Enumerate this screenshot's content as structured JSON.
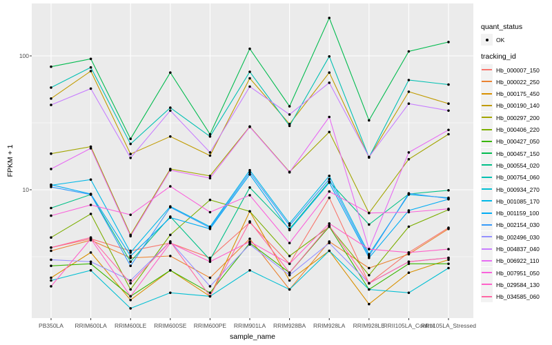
{
  "figure": {
    "background": "#FFFFFF",
    "panel_background": "#EBEBEB",
    "gridline_color": "#FFFFFF",
    "axis_text_color": "#4D4D4D",
    "point_color": "#000000"
  },
  "axes": {
    "y_title": "FPKM + 1",
    "x_title": "sample_name",
    "y_tick_labels": [
      "100",
      "10"
    ]
  },
  "legend": {
    "quant_status_title": "quant_status",
    "quant_status_items": [
      {
        "label": "OK",
        "marker": "black-point"
      }
    ],
    "tracking_id_title": "tracking_id"
  },
  "chart_data": {
    "type": "line",
    "title": "",
    "xlabel": "sample_name",
    "ylabel": "FPKM + 1",
    "y_scale": "log10",
    "y_major_ticks": [
      10,
      100
    ],
    "y_minor_gridlines": [
      3.162,
      31.62
    ],
    "ylim": [
      1.1,
      235
    ],
    "grid": true,
    "legend_position": "right",
    "point_legend": {
      "title": "quant_status",
      "label": "OK"
    },
    "series_legend_title": "tracking_id",
    "categories": [
      "PB350LA",
      "RRIM600LA",
      "RRIM600LE",
      "RRIM600SE",
      "RRIM600PE",
      "RRIM901LA",
      "RRIM928BA",
      "RRIM928LA",
      "RRIM928LE",
      "RRII105LA_Control",
      "RRII105LA_Stressed"
    ],
    "series": [
      {
        "name": "Hb_000007_150",
        "color": "#F8766D",
        "values": [
          3.7,
          4.3,
          3.5,
          4.0,
          3.1,
          5.7,
          2.8,
          8.7,
          2.0,
          3.4,
          5.2
        ]
      },
      {
        "name": "Hb_000022_250",
        "color": "#EA8331",
        "values": [
          3.5,
          4.2,
          3.1,
          3.2,
          2.2,
          4.3,
          1.8,
          4.1,
          2.6,
          3.3,
          5.1
        ]
      },
      {
        "name": "Hb_000175_450",
        "color": "#D89000",
        "values": [
          2.2,
          3.4,
          1.5,
          2.5,
          1.6,
          6.9,
          2.1,
          3.5,
          1.4,
          2.4,
          3.0
        ]
      },
      {
        "name": "Hb_000190_140",
        "color": "#C09B00",
        "values": [
          48,
          77,
          18.5,
          25,
          18,
          68,
          31,
          75,
          17.4,
          54,
          44
        ]
      },
      {
        "name": "Hb_000297_200",
        "color": "#A3A500",
        "values": [
          18.6,
          21,
          4.6,
          14.3,
          12.7,
          29.7,
          13.6,
          27,
          6.7,
          16.9,
          26
        ]
      },
      {
        "name": "Hb_000406_220",
        "color": "#7CAE00",
        "values": [
          4.4,
          6.6,
          1.8,
          4.6,
          8.4,
          6.9,
          3.2,
          5.3,
          2.3,
          5.3,
          7.1
        ]
      },
      {
        "name": "Hb_000427_050",
        "color": "#39B600",
        "values": [
          2.7,
          2.8,
          1.6,
          2.5,
          1.7,
          4.0,
          2.4,
          5.3,
          1.8,
          2.8,
          2.8
        ]
      },
      {
        "name": "Hb_000457_150",
        "color": "#00BB4E",
        "values": [
          83,
          95,
          24,
          75,
          26,
          113,
          42,
          192,
          33,
          108,
          127
        ]
      },
      {
        "name": "Hb_000554_020",
        "color": "#00C087",
        "values": [
          7.3,
          9.2,
          2.9,
          6.3,
          3.0,
          10.4,
          5.1,
          11.5,
          5.5,
          9.3,
          9.9
        ]
      },
      {
        "name": "Hb_000754_060",
        "color": "#00C0B2",
        "values": [
          58,
          82,
          22,
          41,
          25,
          76,
          30,
          99,
          17.5,
          66,
          61
        ]
      },
      {
        "name": "Hb_000934_270",
        "color": "#00BFD3",
        "values": [
          2.1,
          2.5,
          1.3,
          1.7,
          1.6,
          2.5,
          1.8,
          3.5,
          1.8,
          1.7,
          2.6
        ]
      },
      {
        "name": "Hb_001085_170",
        "color": "#00B8E7",
        "values": [
          10.8,
          11.9,
          3.4,
          7.5,
          5.3,
          14.0,
          5.6,
          12.7,
          3.3,
          9.2,
          8.7
        ]
      },
      {
        "name": "Hb_001159_100",
        "color": "#00ACF4",
        "values": [
          10.9,
          9.3,
          3.2,
          6.2,
          5.1,
          13.0,
          5.0,
          11.3,
          3.1,
          7.0,
          8.5
        ]
      },
      {
        "name": "Hb_002154_030",
        "color": "#359AFA",
        "values": [
          10.5,
          9.2,
          2.7,
          7.4,
          5.2,
          13.5,
          5.4,
          12.0,
          3.2,
          9.4,
          8.6
        ]
      },
      {
        "name": "Hb_002496_030",
        "color": "#9590FF",
        "values": [
          3.0,
          2.9,
          2.1,
          4.1,
          1.9,
          3.9,
          2.3,
          4.0,
          2.0,
          2.9,
          3.1
        ]
      },
      {
        "name": "Hb_004837_040",
        "color": "#C77CFF",
        "values": [
          43,
          57,
          17.3,
          39,
          19,
          59,
          36.5,
          63,
          17.6,
          44,
          39
        ]
      },
      {
        "name": "Hb_006922_110",
        "color": "#E76BF3",
        "values": [
          14.3,
          20.4,
          4.5,
          14.0,
          12.2,
          29.5,
          13.5,
          35,
          3.6,
          19,
          28
        ]
      },
      {
        "name": "Hb_007951_050",
        "color": "#FA62DB",
        "values": [
          6.4,
          7.7,
          6.5,
          10.6,
          6.8,
          9.1,
          4.0,
          9.7,
          6.7,
          6.8,
          7.2
        ]
      },
      {
        "name": "Hb_029584_130",
        "color": "#FF61C9",
        "values": [
          1.9,
          4.3,
          1.6,
          4.0,
          2.9,
          4.1,
          2.8,
          5.6,
          3.6,
          3.4,
          3.6
        ]
      },
      {
        "name": "Hb_034585_060",
        "color": "#FF67A4",
        "values": [
          3.7,
          4.4,
          2.0,
          4.1,
          1.6,
          5.8,
          2.4,
          5.4,
          2.0,
          2.9,
          3.1
        ]
      }
    ]
  }
}
